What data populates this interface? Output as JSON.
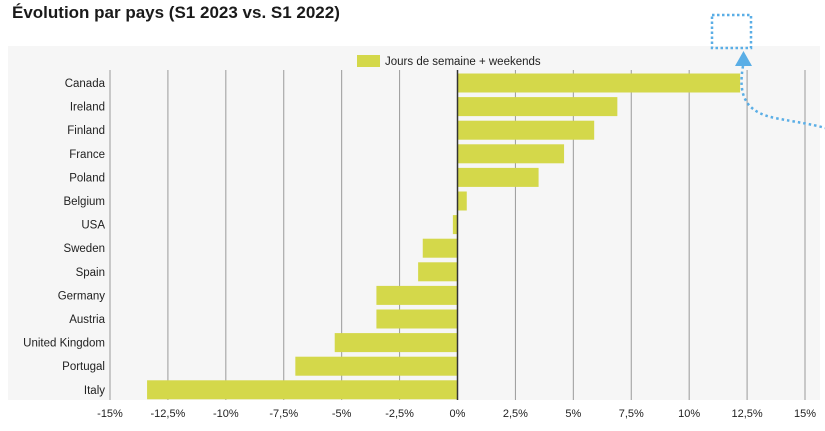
{
  "title": "Évolution par pays (S1 2023 vs. S1 2022)",
  "colors": {
    "bar": "#d4d84a",
    "annotation": "#5aaee6",
    "grid": "#9a9a9a",
    "zero": "#333333"
  },
  "chart_data": {
    "type": "bar",
    "orientation": "horizontal",
    "title": "Évolution par pays (S1 2023 vs. S1 2022)",
    "categories": [
      "Canada",
      "Ireland",
      "Finland",
      "France",
      "Poland",
      "Belgium",
      "USA",
      "Sweden",
      "Spain",
      "Germany",
      "Austria",
      "United Kingdom",
      "Portugal",
      "Italy"
    ],
    "series": [
      {
        "name": "Jours de semaine + weekends",
        "values": [
          12.2,
          6.9,
          5.9,
          4.6,
          3.5,
          0.4,
          -0.2,
          -1.5,
          -1.7,
          -3.5,
          -3.5,
          -5.3,
          -7.0,
          -13.4
        ]
      }
    ],
    "xlim": [
      -15,
      15
    ],
    "xticks": [
      -15,
      -12.5,
      -10,
      -7.5,
      -5,
      -2.5,
      0,
      2.5,
      5,
      7.5,
      10,
      12.5,
      15
    ],
    "xtick_labels": [
      "-15%",
      "-12,5%",
      "-10%",
      "-7,5%",
      "-5%",
      "-2,5%",
      "0%",
      "2,5%",
      "5%",
      "7,5%",
      "10%",
      "12,5%",
      "15%"
    ],
    "grid": true,
    "legend_position": "top-center"
  }
}
